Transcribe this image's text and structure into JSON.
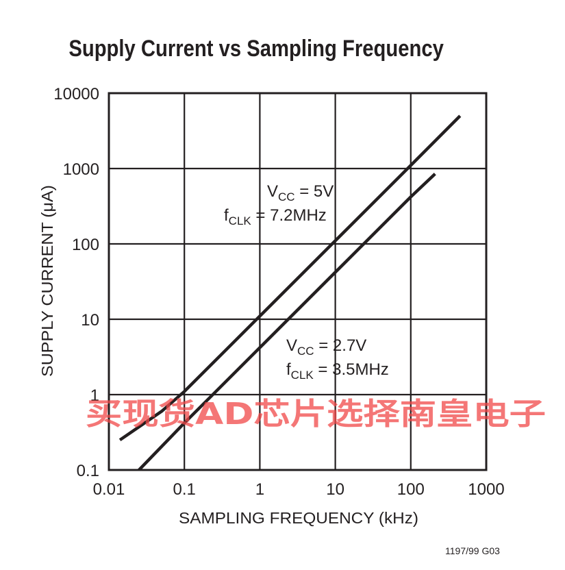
{
  "chart_data": {
    "type": "line",
    "title": "Supply Current vs Sampling Frequency",
    "xlabel": "SAMPLING FREQUENCY (kHz)",
    "ylabel": "SUPPLY CURRENT (μA)",
    "x_scale": "log",
    "y_scale": "log",
    "xlim": [
      0.01,
      1000
    ],
    "ylim": [
      0.1,
      10000
    ],
    "grid": true,
    "x_ticks": [
      "0.01",
      "0.1",
      "1",
      "10",
      "100",
      "1000"
    ],
    "y_ticks": [
      "0.1",
      "1",
      "10",
      "100",
      "1000",
      "10000"
    ],
    "series": [
      {
        "x": [
          0.014,
          0.05,
          0.1,
          1,
          10,
          100,
          450
        ],
        "y": [
          0.25,
          0.6,
          1.1,
          11,
          110,
          1100,
          5000
        ]
      },
      {
        "x": [
          0.025,
          0.1,
          1,
          10,
          100,
          210
        ],
        "y": [
          0.1,
          0.42,
          4.2,
          42,
          420,
          850
        ]
      }
    ],
    "annotations": [
      {
        "lines": [
          {
            "main": "V",
            "sub": "CC",
            "rest": " = 5V"
          },
          {
            "main": "f",
            "sub": "CLK",
            "rest": " = 7.2MHz"
          }
        ]
      },
      {
        "lines": [
          {
            "main": "V",
            "sub": "CC",
            "rest": " = 2.7V"
          },
          {
            "main": "f",
            "sub": "CLK",
            "rest": " = 3.5MHz"
          }
        ]
      }
    ]
  },
  "watermark": "买现货AD芯片选择南皇电子",
  "figure_code": "1197/99 G03"
}
